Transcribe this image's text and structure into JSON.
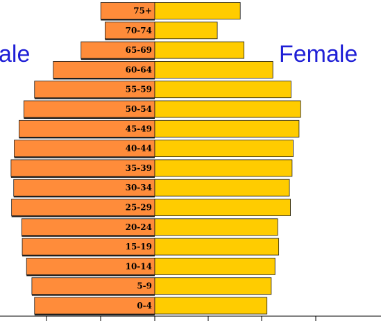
{
  "chart_data": {
    "type": "bar",
    "orientation": "horizontal-population-pyramid",
    "categories": [
      "0-4",
      "5-9",
      "10-14",
      "15-19",
      "20-24",
      "25-29",
      "30-34",
      "35-39",
      "40-44",
      "45-49",
      "50-54",
      "55-59",
      "60-64",
      "65-69",
      "70-74",
      "75+"
    ],
    "series": [
      {
        "name": "Male",
        "color": "#ff8c3a",
        "values": [
          22.5,
          23.0,
          24.0,
          24.8,
          24.9,
          26.8,
          26.4,
          26.9,
          26.3,
          25.4,
          24.5,
          22.5,
          19.0,
          13.8,
          9.3,
          10.1
        ]
      },
      {
        "name": "Female",
        "color": "#ffcc00",
        "values": [
          21.0,
          21.8,
          22.5,
          23.2,
          23.0,
          25.4,
          25.2,
          25.7,
          25.9,
          27.0,
          27.3,
          25.5,
          22.1,
          16.7,
          11.7,
          16.0
        ]
      }
    ],
    "xlim": [
      -30,
      40
    ],
    "grid": false
  },
  "labels": {
    "male": "ale",
    "female": "Female"
  },
  "colors": {
    "side_label": "#1f1fd6",
    "bar_outline": "#1a1a1a"
  }
}
